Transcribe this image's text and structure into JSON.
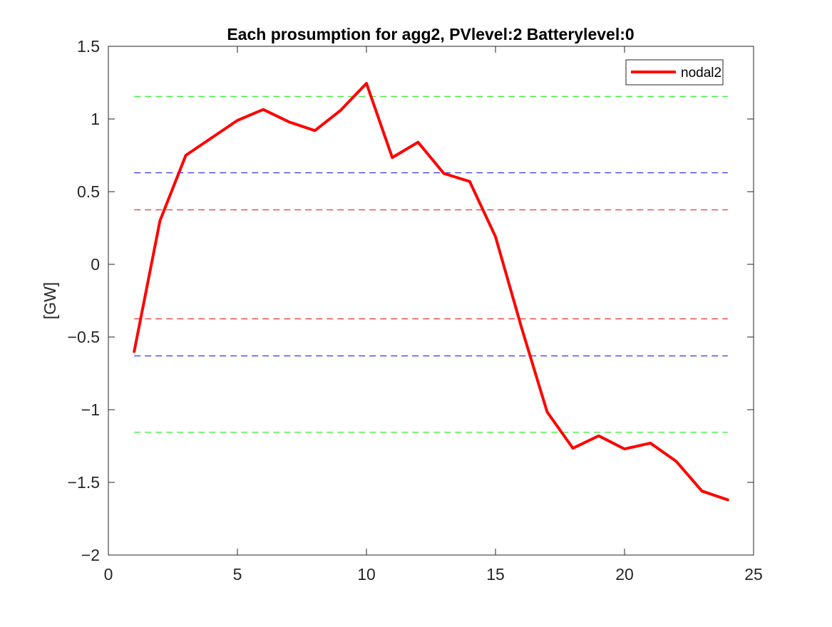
{
  "chart_data": {
    "type": "line",
    "title": "Each prosumption for agg2, PVlevel:2 Batterylevel:0",
    "xlabel": "",
    "ylabel": "[GW]",
    "xlim": [
      0,
      25
    ],
    "ylim": [
      -2,
      1.5
    ],
    "xticks": [
      0,
      5,
      10,
      15,
      20,
      25
    ],
    "yticks": [
      -2,
      -1.5,
      -1,
      -0.5,
      0,
      0.5,
      1,
      1.5
    ],
    "xtick_labels": [
      "0",
      "5",
      "10",
      "15",
      "20",
      "25"
    ],
    "ytick_labels": [
      "−2",
      "−1.5",
      "−1",
      "−0.5",
      "0",
      "0.5",
      "1",
      "1.5"
    ],
    "grid": false,
    "legend_position": "top-right",
    "series": [
      {
        "name": "nodal2",
        "color": "#ff0000",
        "x": [
          1,
          2,
          3,
          4,
          5,
          6,
          7,
          8,
          9,
          10,
          11,
          12,
          13,
          14,
          15,
          16,
          17,
          18,
          19,
          20,
          21,
          22,
          23,
          24
        ],
        "y": [
          -0.6,
          0.3,
          0.75,
          0.87,
          0.99,
          1.065,
          0.98,
          0.92,
          1.06,
          1.245,
          0.735,
          0.84,
          0.625,
          0.57,
          0.19,
          -0.43,
          -1.015,
          -1.265,
          -1.18,
          -1.27,
          -1.23,
          -1.355,
          -1.56,
          -1.62
        ]
      }
    ],
    "reference_lines": [
      {
        "y": 1.155,
        "color": "#33ee33",
        "style": "dashed",
        "x_range": [
          1,
          24
        ]
      },
      {
        "y": 0.63,
        "color": "#3333ee",
        "style": "dashed",
        "x_range": [
          1,
          24
        ]
      },
      {
        "y": 0.375,
        "color": "#ee3333",
        "style": "dashed",
        "x_range": [
          1,
          24
        ]
      },
      {
        "y": -0.375,
        "color": "#ee3333",
        "style": "dashed",
        "x_range": [
          1,
          24
        ]
      },
      {
        "y": -0.63,
        "color": "#3333ee",
        "style": "dashed",
        "x_range": [
          1,
          24
        ]
      },
      {
        "y": -1.155,
        "color": "#33ee33",
        "style": "dashed",
        "x_range": [
          1,
          24
        ]
      }
    ]
  }
}
